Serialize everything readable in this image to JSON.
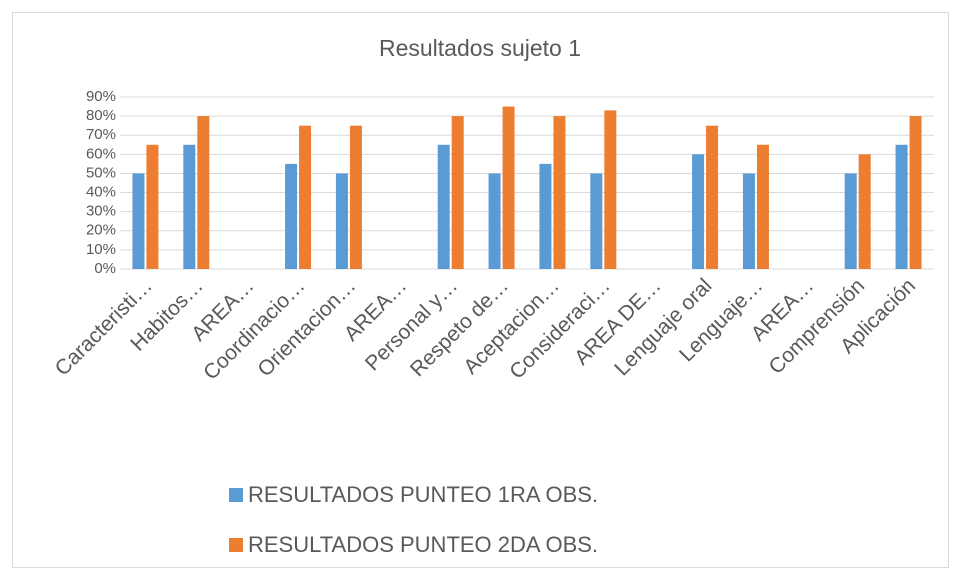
{
  "chart_data": {
    "type": "bar",
    "title": "Resultados sujeto 1",
    "categories": [
      "Caracteristi…",
      "Habitos…",
      "AREA…",
      "Coordinacio…",
      "Orientacion…",
      "AREA…",
      "Personal y…",
      "Respeto de…",
      "Aceptacion…",
      "Consideraci…",
      "AREA DE…",
      "Lenguaje oral",
      "Lenguaje…",
      "AREA…",
      "Comprensión",
      "Aplicación"
    ],
    "series": [
      {
        "name": "RESULTADOS PUNTEO 1RA OBS.",
        "color": "#5b9bd5",
        "values": [
          50,
          65,
          null,
          55,
          50,
          null,
          65,
          50,
          55,
          50,
          null,
          60,
          50,
          null,
          50,
          65
        ]
      },
      {
        "name": "RESULTADOS PUNTEO 2DA OBS.",
        "color": "#ed7d31",
        "values": [
          65,
          80,
          null,
          75,
          75,
          null,
          80,
          85,
          80,
          83,
          null,
          75,
          65,
          null,
          60,
          80
        ]
      }
    ],
    "ylim": [
      0,
      90
    ],
    "yticks": [
      {
        "value": 0,
        "label": "0%"
      },
      {
        "value": 10,
        "label": "10%"
      },
      {
        "value": 20,
        "label": "20%"
      },
      {
        "value": 30,
        "label": "30%"
      },
      {
        "value": 40,
        "label": "40%"
      },
      {
        "value": 50,
        "label": "50%"
      },
      {
        "value": 60,
        "label": "60%"
      },
      {
        "value": 70,
        "label": "70%"
      },
      {
        "value": 80,
        "label": "80%"
      },
      {
        "value": 90,
        "label": "90%"
      }
    ],
    "grid": true,
    "legend": "bottom"
  }
}
